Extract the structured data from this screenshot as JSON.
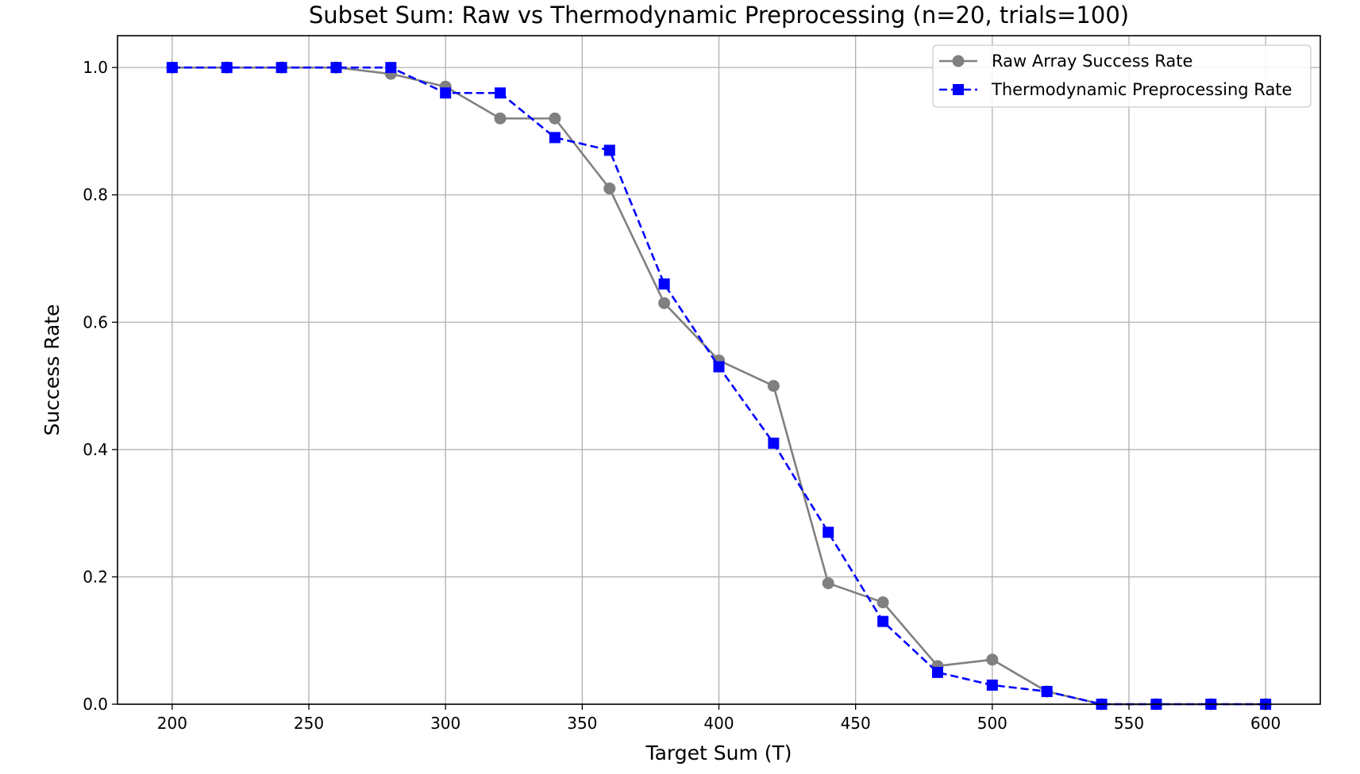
{
  "chart_data": {
    "type": "line",
    "title": "Subset Sum: Raw vs Thermodynamic Preprocessing (n=20, trials=100)",
    "xlabel": "Target Sum (T)",
    "ylabel": "Success Rate",
    "xlim": [
      180,
      620
    ],
    "ylim": [
      0,
      1.05
    ],
    "xticks": [
      200,
      250,
      300,
      350,
      400,
      450,
      500,
      550,
      600
    ],
    "xtick_labels": [
      "200",
      "250",
      "300",
      "350",
      "400",
      "450",
      "500",
      "550",
      "600"
    ],
    "yticks": [
      0.0,
      0.2,
      0.4,
      0.6,
      0.8,
      1.0
    ],
    "ytick_labels": [
      "0.0",
      "0.2",
      "0.4",
      "0.6",
      "0.8",
      "1.0"
    ],
    "grid": true,
    "legend_position": "top-right",
    "x": [
      200,
      220,
      240,
      260,
      280,
      300,
      320,
      340,
      360,
      380,
      400,
      420,
      440,
      460,
      480,
      500,
      520,
      540,
      560,
      580,
      600
    ],
    "series": [
      {
        "name": "Raw Array Success Rate",
        "color": "#808080",
        "marker": "circle",
        "linestyle": "solid",
        "values": [
          1.0,
          1.0,
          1.0,
          1.0,
          0.99,
          0.97,
          0.92,
          0.92,
          0.81,
          0.63,
          0.54,
          0.5,
          0.19,
          0.16,
          0.06,
          0.07,
          0.02,
          0.0,
          0.0,
          0.0,
          0.0
        ]
      },
      {
        "name": "Thermodynamic Preprocessing Rate",
        "color": "#0000ff",
        "marker": "square",
        "linestyle": "dashed",
        "values": [
          1.0,
          1.0,
          1.0,
          1.0,
          1.0,
          0.96,
          0.96,
          0.89,
          0.87,
          0.66,
          0.53,
          0.41,
          0.27,
          0.13,
          0.05,
          0.03,
          0.02,
          0.0,
          0.0,
          0.0,
          0.0
        ]
      }
    ]
  }
}
